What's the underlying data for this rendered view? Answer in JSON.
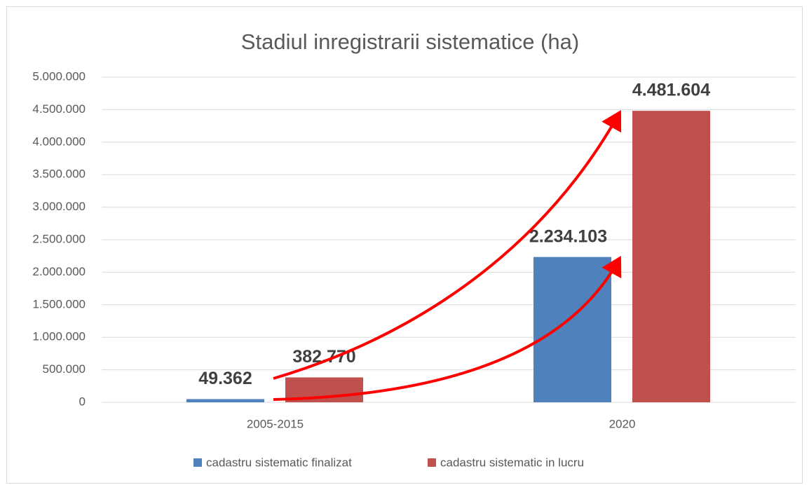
{
  "chart_data": {
    "type": "bar",
    "title": "Stadiul inregistrarii sistematice (ha)",
    "categories": [
      "2005-2015",
      "2020"
    ],
    "series": [
      {
        "name": "cadastru sistematic finalizat",
        "color": "#4f81bd",
        "values": [
          49362,
          2234103
        ],
        "value_labels": [
          "49.362",
          "2.234.103"
        ]
      },
      {
        "name": "cadastru sistematic in lucru",
        "color": "#c0504d",
        "values": [
          382770,
          4481604
        ],
        "value_labels": [
          "382.770",
          "4.481.604"
        ]
      }
    ],
    "ylim": [
      0,
      5000000
    ],
    "yticks": [
      0,
      {
        "value": 500000,
        "label": "500.000"
      },
      {
        "value": 1000000,
        "label": "1.000.000"
      },
      {
        "value": 1500000,
        "label": "1.500.000"
      },
      {
        "value": 2000000,
        "label": "2.000.000"
      },
      {
        "value": 2500000,
        "label": "2.500.000"
      },
      {
        "value": 3000000,
        "label": "3.000.000"
      },
      {
        "value": 3500000,
        "label": "3.500.000"
      },
      {
        "value": 4000000,
        "label": "4.000.000"
      },
      {
        "value": 4500000,
        "label": "4.500.000"
      },
      {
        "value": 5000000,
        "label": "5.000.000"
      }
    ],
    "grid": true,
    "legend": "bottom"
  }
}
